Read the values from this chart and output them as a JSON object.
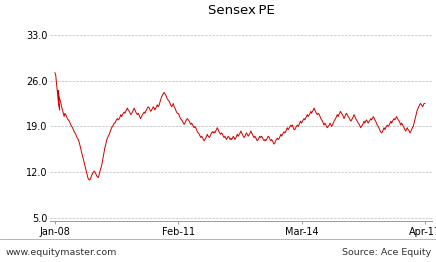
{
  "title": "Sensex PE",
  "title_fontsize": 9.5,
  "line_color": "#cc0000",
  "line_width": 0.7,
  "background_color": "#ffffff",
  "footer_bg_color": "#e8e8e8",
  "footer_left": "www.equitymaster.com",
  "footer_right": "Source: Ace Equity",
  "footer_fontsize": 6.8,
  "yticks": [
    5.0,
    12.0,
    19.0,
    26.0,
    33.0
  ],
  "ylim": [
    4.5,
    35.5
  ],
  "xtick_labels": [
    "Jan-08",
    "Feb-11",
    "Mar-14",
    "Apr-17"
  ],
  "xtick_positions_years": [
    2008.0,
    2011.083,
    2014.167,
    2017.25
  ],
  "xlim": [
    2007.88,
    2017.42
  ],
  "grid_color": "#aaaaaa",
  "grid_style": "--",
  "grid_linewidth": 0.5,
  "pe_data": [
    [
      2008.0,
      27.2
    ],
    [
      2008.02,
      26.8
    ],
    [
      2008.04,
      25.5
    ],
    [
      2008.06,
      24.2
    ],
    [
      2008.08,
      23.0
    ],
    [
      2008.1,
      22.0
    ],
    [
      2008.12,
      21.5
    ],
    [
      2008.083,
      24.5
    ],
    [
      2008.1,
      23.5
    ],
    [
      2008.13,
      23.0
    ],
    [
      2008.15,
      22.5
    ],
    [
      2008.167,
      22.0
    ],
    [
      2008.19,
      21.5
    ],
    [
      2008.21,
      21.0
    ],
    [
      2008.23,
      20.5
    ],
    [
      2008.25,
      21.0
    ],
    [
      2008.27,
      20.8
    ],
    [
      2008.29,
      20.5
    ],
    [
      2008.31,
      20.2
    ],
    [
      2008.333,
      20.0
    ],
    [
      2008.36,
      19.8
    ],
    [
      2008.38,
      19.5
    ],
    [
      2008.4,
      19.2
    ],
    [
      2008.417,
      19.0
    ],
    [
      2008.44,
      18.8
    ],
    [
      2008.46,
      18.5
    ],
    [
      2008.48,
      18.2
    ],
    [
      2008.5,
      18.0
    ],
    [
      2008.52,
      17.8
    ],
    [
      2008.54,
      17.5
    ],
    [
      2008.56,
      17.2
    ],
    [
      2008.583,
      17.0
    ],
    [
      2008.61,
      16.5
    ],
    [
      2008.63,
      16.0
    ],
    [
      2008.65,
      15.5
    ],
    [
      2008.667,
      15.0
    ],
    [
      2008.69,
      14.5
    ],
    [
      2008.71,
      14.0
    ],
    [
      2008.73,
      13.5
    ],
    [
      2008.75,
      13.0
    ],
    [
      2008.77,
      12.5
    ],
    [
      2008.79,
      12.0
    ],
    [
      2008.81,
      11.5
    ],
    [
      2008.833,
      11.0
    ],
    [
      2008.86,
      10.8
    ],
    [
      2008.88,
      10.9
    ],
    [
      2008.9,
      11.2
    ],
    [
      2008.917,
      11.5
    ],
    [
      2008.94,
      11.8
    ],
    [
      2008.96,
      12.0
    ],
    [
      2008.98,
      12.2
    ],
    [
      2009.0,
      12.0
    ],
    [
      2009.02,
      11.8
    ],
    [
      2009.04,
      11.5
    ],
    [
      2009.06,
      11.3
    ],
    [
      2009.083,
      11.2
    ],
    [
      2009.1,
      11.5
    ],
    [
      2009.12,
      12.0
    ],
    [
      2009.14,
      12.5
    ],
    [
      2009.167,
      13.0
    ],
    [
      2009.19,
      13.8
    ],
    [
      2009.21,
      14.5
    ],
    [
      2009.23,
      15.2
    ],
    [
      2009.25,
      15.8
    ],
    [
      2009.27,
      16.2
    ],
    [
      2009.29,
      16.8
    ],
    [
      2009.31,
      17.2
    ],
    [
      2009.333,
      17.5
    ],
    [
      2009.36,
      17.8
    ],
    [
      2009.38,
      18.2
    ],
    [
      2009.4,
      18.5
    ],
    [
      2009.417,
      18.8
    ],
    [
      2009.44,
      19.0
    ],
    [
      2009.46,
      19.2
    ],
    [
      2009.48,
      19.5
    ],
    [
      2009.5,
      19.5
    ],
    [
      2009.52,
      19.8
    ],
    [
      2009.54,
      20.0
    ],
    [
      2009.56,
      20.2
    ],
    [
      2009.583,
      20.0
    ],
    [
      2009.61,
      20.2
    ],
    [
      2009.63,
      20.5
    ],
    [
      2009.65,
      20.8
    ],
    [
      2009.667,
      20.5
    ],
    [
      2009.69,
      20.8
    ],
    [
      2009.71,
      21.0
    ],
    [
      2009.73,
      21.2
    ],
    [
      2009.75,
      21.0
    ],
    [
      2009.77,
      21.3
    ],
    [
      2009.79,
      21.5
    ],
    [
      2009.81,
      21.8
    ],
    [
      2009.833,
      21.5
    ],
    [
      2009.86,
      21.3
    ],
    [
      2009.88,
      21.0
    ],
    [
      2009.9,
      20.8
    ],
    [
      2009.917,
      21.0
    ],
    [
      2009.94,
      21.2
    ],
    [
      2009.96,
      21.5
    ],
    [
      2009.98,
      21.8
    ],
    [
      2010.0,
      21.5
    ],
    [
      2010.02,
      21.2
    ],
    [
      2010.04,
      21.0
    ],
    [
      2010.06,
      20.8
    ],
    [
      2010.083,
      21.0
    ],
    [
      2010.1,
      20.8
    ],
    [
      2010.12,
      20.5
    ],
    [
      2010.14,
      20.2
    ],
    [
      2010.167,
      20.5
    ],
    [
      2010.19,
      20.8
    ],
    [
      2010.21,
      21.0
    ],
    [
      2010.23,
      21.2
    ],
    [
      2010.25,
      21.0
    ],
    [
      2010.27,
      21.3
    ],
    [
      2010.29,
      21.5
    ],
    [
      2010.31,
      21.8
    ],
    [
      2010.333,
      22.0
    ],
    [
      2010.36,
      21.8
    ],
    [
      2010.38,
      21.5
    ],
    [
      2010.4,
      21.3
    ],
    [
      2010.417,
      21.5
    ],
    [
      2010.44,
      21.8
    ],
    [
      2010.46,
      22.0
    ],
    [
      2010.48,
      21.8
    ],
    [
      2010.5,
      21.5
    ],
    [
      2010.52,
      21.8
    ],
    [
      2010.54,
      22.0
    ],
    [
      2010.56,
      22.3
    ],
    [
      2010.583,
      22.0
    ],
    [
      2010.61,
      22.3
    ],
    [
      2010.63,
      22.8
    ],
    [
      2010.65,
      23.2
    ],
    [
      2010.667,
      23.5
    ],
    [
      2010.69,
      23.8
    ],
    [
      2010.71,
      24.0
    ],
    [
      2010.73,
      24.2
    ],
    [
      2010.75,
      24.0
    ],
    [
      2010.77,
      23.8
    ],
    [
      2010.79,
      23.5
    ],
    [
      2010.81,
      23.2
    ],
    [
      2010.833,
      23.0
    ],
    [
      2010.86,
      22.8
    ],
    [
      2010.88,
      22.5
    ],
    [
      2010.9,
      22.2
    ],
    [
      2010.917,
      22.0
    ],
    [
      2010.94,
      22.2
    ],
    [
      2010.96,
      22.5
    ],
    [
      2010.98,
      22.0
    ],
    [
      2011.0,
      21.8
    ],
    [
      2011.02,
      21.5
    ],
    [
      2011.04,
      21.2
    ],
    [
      2011.06,
      21.0
    ],
    [
      2011.083,
      21.0
    ],
    [
      2011.1,
      20.8
    ],
    [
      2011.12,
      20.5
    ],
    [
      2011.14,
      20.2
    ],
    [
      2011.167,
      20.0
    ],
    [
      2011.19,
      19.8
    ],
    [
      2011.21,
      19.5
    ],
    [
      2011.23,
      19.3
    ],
    [
      2011.25,
      19.5
    ],
    [
      2011.27,
      19.8
    ],
    [
      2011.29,
      20.0
    ],
    [
      2011.31,
      20.2
    ],
    [
      2011.333,
      20.0
    ],
    [
      2011.36,
      19.8
    ],
    [
      2011.38,
      19.5
    ],
    [
      2011.4,
      19.3
    ],
    [
      2011.417,
      19.5
    ],
    [
      2011.44,
      19.3
    ],
    [
      2011.46,
      19.0
    ],
    [
      2011.48,
      18.8
    ],
    [
      2011.5,
      19.0
    ],
    [
      2011.52,
      18.8
    ],
    [
      2011.54,
      18.5
    ],
    [
      2011.56,
      18.2
    ],
    [
      2011.583,
      18.0
    ],
    [
      2011.61,
      17.8
    ],
    [
      2011.63,
      17.5
    ],
    [
      2011.65,
      17.3
    ],
    [
      2011.667,
      17.5
    ],
    [
      2011.69,
      17.3
    ],
    [
      2011.71,
      17.0
    ],
    [
      2011.73,
      16.8
    ],
    [
      2011.75,
      17.0
    ],
    [
      2011.77,
      17.2
    ],
    [
      2011.79,
      17.5
    ],
    [
      2011.81,
      17.8
    ],
    [
      2011.833,
      17.5
    ],
    [
      2011.86,
      17.3
    ],
    [
      2011.88,
      17.5
    ],
    [
      2011.9,
      17.8
    ],
    [
      2011.917,
      18.0
    ],
    [
      2011.94,
      18.2
    ],
    [
      2011.96,
      18.0
    ],
    [
      2011.98,
      18.2
    ],
    [
      2012.0,
      18.0
    ],
    [
      2012.02,
      18.3
    ],
    [
      2012.04,
      18.5
    ],
    [
      2012.06,
      18.8
    ],
    [
      2012.083,
      18.5
    ],
    [
      2012.1,
      18.2
    ],
    [
      2012.12,
      18.0
    ],
    [
      2012.14,
      17.8
    ],
    [
      2012.167,
      18.0
    ],
    [
      2012.19,
      17.8
    ],
    [
      2012.21,
      17.5
    ],
    [
      2012.23,
      17.3
    ],
    [
      2012.25,
      17.5
    ],
    [
      2012.27,
      17.3
    ],
    [
      2012.29,
      17.0
    ],
    [
      2012.31,
      17.2
    ],
    [
      2012.333,
      17.5
    ],
    [
      2012.36,
      17.3
    ],
    [
      2012.38,
      17.0
    ],
    [
      2012.4,
      17.2
    ],
    [
      2012.417,
      17.0
    ],
    [
      2012.44,
      17.2
    ],
    [
      2012.46,
      17.5
    ],
    [
      2012.48,
      17.3
    ],
    [
      2012.5,
      17.0
    ],
    [
      2012.52,
      17.2
    ],
    [
      2012.54,
      17.5
    ],
    [
      2012.56,
      17.8
    ],
    [
      2012.583,
      17.5
    ],
    [
      2012.61,
      17.8
    ],
    [
      2012.63,
      18.0
    ],
    [
      2012.65,
      18.3
    ],
    [
      2012.667,
      18.0
    ],
    [
      2012.69,
      17.8
    ],
    [
      2012.71,
      17.5
    ],
    [
      2012.73,
      17.3
    ],
    [
      2012.75,
      17.5
    ],
    [
      2012.77,
      17.8
    ],
    [
      2012.79,
      18.0
    ],
    [
      2012.81,
      17.8
    ],
    [
      2012.833,
      17.5
    ],
    [
      2012.86,
      17.8
    ],
    [
      2012.88,
      18.0
    ],
    [
      2012.9,
      18.3
    ],
    [
      2012.917,
      18.0
    ],
    [
      2012.94,
      17.8
    ],
    [
      2012.96,
      17.5
    ],
    [
      2012.98,
      17.3
    ],
    [
      2013.0,
      17.5
    ],
    [
      2013.02,
      17.3
    ],
    [
      2013.04,
      17.0
    ],
    [
      2013.06,
      16.8
    ],
    [
      2013.083,
      17.0
    ],
    [
      2013.1,
      17.2
    ],
    [
      2013.12,
      17.5
    ],
    [
      2013.14,
      17.3
    ],
    [
      2013.167,
      17.5
    ],
    [
      2013.19,
      17.3
    ],
    [
      2013.21,
      17.0
    ],
    [
      2013.23,
      16.8
    ],
    [
      2013.25,
      17.0
    ],
    [
      2013.27,
      16.8
    ],
    [
      2013.29,
      17.0
    ],
    [
      2013.31,
      17.2
    ],
    [
      2013.333,
      17.5
    ],
    [
      2013.36,
      17.3
    ],
    [
      2013.38,
      17.0
    ],
    [
      2013.4,
      16.8
    ],
    [
      2013.417,
      17.0
    ],
    [
      2013.44,
      16.8
    ],
    [
      2013.46,
      16.5
    ],
    [
      2013.48,
      16.3
    ],
    [
      2013.5,
      16.5
    ],
    [
      2013.52,
      16.8
    ],
    [
      2013.54,
      17.0
    ],
    [
      2013.56,
      17.2
    ],
    [
      2013.583,
      17.0
    ],
    [
      2013.61,
      17.2
    ],
    [
      2013.63,
      17.5
    ],
    [
      2013.65,
      17.8
    ],
    [
      2013.667,
      17.5
    ],
    [
      2013.69,
      17.8
    ],
    [
      2013.71,
      18.0
    ],
    [
      2013.73,
      18.2
    ],
    [
      2013.75,
      18.0
    ],
    [
      2013.77,
      18.2
    ],
    [
      2013.79,
      18.5
    ],
    [
      2013.81,
      18.8
    ],
    [
      2013.833,
      18.5
    ],
    [
      2013.86,
      18.8
    ],
    [
      2013.88,
      19.0
    ],
    [
      2013.9,
      19.2
    ],
    [
      2013.917,
      19.0
    ],
    [
      2013.94,
      19.2
    ],
    [
      2013.96,
      18.8
    ],
    [
      2013.98,
      18.5
    ],
    [
      2014.0,
      18.5
    ],
    [
      2014.02,
      18.8
    ],
    [
      2014.04,
      19.0
    ],
    [
      2014.06,
      19.2
    ],
    [
      2014.083,
      19.0
    ],
    [
      2014.1,
      19.2
    ],
    [
      2014.12,
      19.5
    ],
    [
      2014.14,
      19.8
    ],
    [
      2014.167,
      19.5
    ],
    [
      2014.19,
      19.8
    ],
    [
      2014.21,
      20.0
    ],
    [
      2014.23,
      20.2
    ],
    [
      2014.25,
      20.0
    ],
    [
      2014.27,
      20.3
    ],
    [
      2014.29,
      20.5
    ],
    [
      2014.31,
      20.8
    ],
    [
      2014.333,
      20.5
    ],
    [
      2014.36,
      20.8
    ],
    [
      2014.38,
      21.0
    ],
    [
      2014.4,
      21.3
    ],
    [
      2014.417,
      21.0
    ],
    [
      2014.44,
      21.3
    ],
    [
      2014.46,
      21.5
    ],
    [
      2014.48,
      21.8
    ],
    [
      2014.5,
      21.5
    ],
    [
      2014.52,
      21.2
    ],
    [
      2014.54,
      21.0
    ],
    [
      2014.56,
      20.8
    ],
    [
      2014.583,
      21.0
    ],
    [
      2014.61,
      20.8
    ],
    [
      2014.63,
      20.5
    ],
    [
      2014.65,
      20.2
    ],
    [
      2014.667,
      20.0
    ],
    [
      2014.69,
      19.8
    ],
    [
      2014.71,
      19.5
    ],
    [
      2014.73,
      19.2
    ],
    [
      2014.75,
      19.5
    ],
    [
      2014.77,
      19.3
    ],
    [
      2014.79,
      19.0
    ],
    [
      2014.81,
      18.8
    ],
    [
      2014.833,
      19.0
    ],
    [
      2014.86,
      19.2
    ],
    [
      2014.88,
      19.5
    ],
    [
      2014.9,
      19.3
    ],
    [
      2014.917,
      19.0
    ],
    [
      2014.94,
      19.2
    ],
    [
      2014.96,
      19.5
    ],
    [
      2014.98,
      19.8
    ],
    [
      2015.0,
      20.0
    ],
    [
      2015.02,
      20.2
    ],
    [
      2015.04,
      20.5
    ],
    [
      2015.06,
      20.8
    ],
    [
      2015.083,
      20.5
    ],
    [
      2015.1,
      20.8
    ],
    [
      2015.12,
      21.0
    ],
    [
      2015.14,
      21.3
    ],
    [
      2015.167,
      21.0
    ],
    [
      2015.19,
      20.8
    ],
    [
      2015.21,
      20.5
    ],
    [
      2015.23,
      20.2
    ],
    [
      2015.25,
      20.5
    ],
    [
      2015.27,
      20.8
    ],
    [
      2015.29,
      21.0
    ],
    [
      2015.31,
      20.8
    ],
    [
      2015.333,
      20.5
    ],
    [
      2015.36,
      20.3
    ],
    [
      2015.38,
      20.0
    ],
    [
      2015.4,
      19.8
    ],
    [
      2015.417,
      20.0
    ],
    [
      2015.44,
      20.2
    ],
    [
      2015.46,
      20.5
    ],
    [
      2015.48,
      20.8
    ],
    [
      2015.5,
      20.5
    ],
    [
      2015.52,
      20.2
    ],
    [
      2015.54,
      20.0
    ],
    [
      2015.56,
      19.8
    ],
    [
      2015.583,
      19.5
    ],
    [
      2015.61,
      19.3
    ],
    [
      2015.63,
      19.0
    ],
    [
      2015.65,
      18.8
    ],
    [
      2015.667,
      19.0
    ],
    [
      2015.69,
      19.2
    ],
    [
      2015.71,
      19.5
    ],
    [
      2015.73,
      19.8
    ],
    [
      2015.75,
      19.5
    ],
    [
      2015.77,
      19.8
    ],
    [
      2015.79,
      20.0
    ],
    [
      2015.81,
      19.8
    ],
    [
      2015.833,
      19.5
    ],
    [
      2015.86,
      19.8
    ],
    [
      2015.88,
      20.0
    ],
    [
      2015.9,
      20.2
    ],
    [
      2015.917,
      20.0
    ],
    [
      2015.94,
      20.2
    ],
    [
      2015.96,
      20.5
    ],
    [
      2015.98,
      20.3
    ],
    [
      2016.0,
      20.0
    ],
    [
      2016.02,
      19.8
    ],
    [
      2016.04,
      19.5
    ],
    [
      2016.06,
      19.2
    ],
    [
      2016.083,
      19.0
    ],
    [
      2016.1,
      18.8
    ],
    [
      2016.12,
      18.5
    ],
    [
      2016.14,
      18.2
    ],
    [
      2016.167,
      18.0
    ],
    [
      2016.19,
      18.2
    ],
    [
      2016.21,
      18.5
    ],
    [
      2016.23,
      18.8
    ],
    [
      2016.25,
      18.5
    ],
    [
      2016.27,
      18.8
    ],
    [
      2016.29,
      19.0
    ],
    [
      2016.31,
      19.2
    ],
    [
      2016.333,
      19.0
    ],
    [
      2016.36,
      19.2
    ],
    [
      2016.38,
      19.5
    ],
    [
      2016.4,
      19.8
    ],
    [
      2016.417,
      19.5
    ],
    [
      2016.44,
      19.8
    ],
    [
      2016.46,
      20.0
    ],
    [
      2016.48,
      20.2
    ],
    [
      2016.5,
      20.0
    ],
    [
      2016.52,
      20.2
    ],
    [
      2016.54,
      20.5
    ],
    [
      2016.56,
      20.3
    ],
    [
      2016.583,
      20.0
    ],
    [
      2016.61,
      19.8
    ],
    [
      2016.63,
      19.5
    ],
    [
      2016.65,
      19.2
    ],
    [
      2016.667,
      19.5
    ],
    [
      2016.69,
      19.3
    ],
    [
      2016.71,
      19.0
    ],
    [
      2016.73,
      18.8
    ],
    [
      2016.75,
      18.5
    ],
    [
      2016.77,
      18.3
    ],
    [
      2016.79,
      18.5
    ],
    [
      2016.81,
      18.8
    ],
    [
      2016.833,
      18.5
    ],
    [
      2016.86,
      18.3
    ],
    [
      2016.88,
      18.0
    ],
    [
      2016.9,
      18.2
    ],
    [
      2016.917,
      18.5
    ],
    [
      2016.94,
      18.8
    ],
    [
      2016.96,
      19.0
    ],
    [
      2016.98,
      19.5
    ],
    [
      2017.0,
      20.0
    ],
    [
      2017.02,
      20.5
    ],
    [
      2017.04,
      21.0
    ],
    [
      2017.06,
      21.5
    ],
    [
      2017.083,
      21.8
    ],
    [
      2017.1,
      22.0
    ],
    [
      2017.12,
      22.3
    ],
    [
      2017.14,
      22.5
    ],
    [
      2017.167,
      22.3
    ],
    [
      2017.19,
      22.0
    ],
    [
      2017.21,
      22.2
    ],
    [
      2017.23,
      22.5
    ],
    [
      2017.25,
      22.5
    ]
  ]
}
